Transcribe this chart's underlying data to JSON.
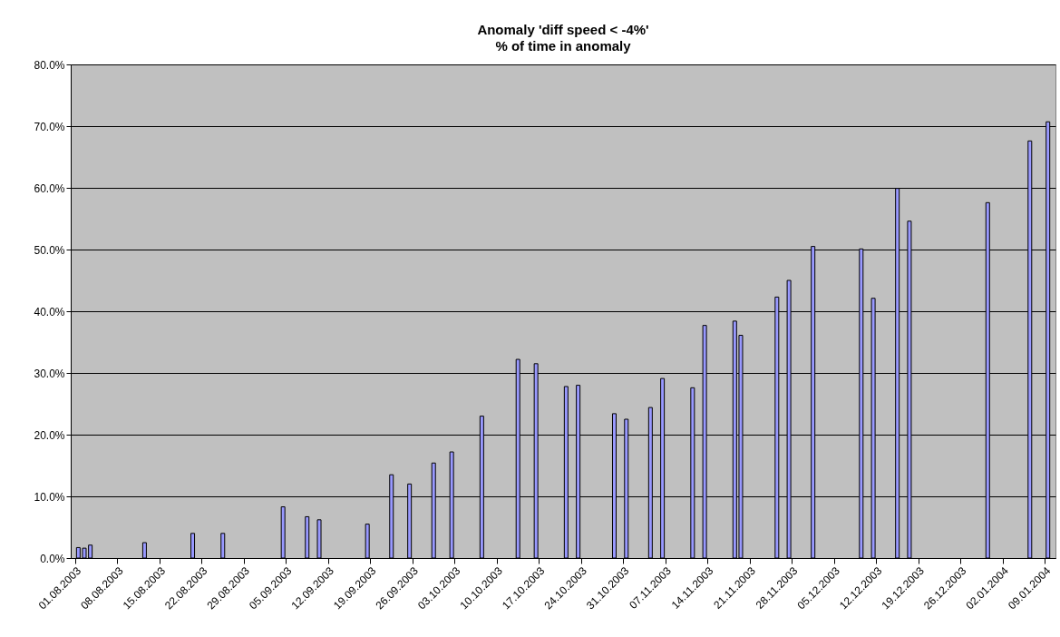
{
  "chart_data": {
    "type": "bar",
    "title": "Anomaly 'diff speed < -4%'",
    "subtitle": "% of time in anomaly",
    "x": [
      "2003-08-01",
      "2003-08-02",
      "2003-08-03",
      "2003-08-12",
      "2003-08-20",
      "2003-08-25",
      "2003-09-04",
      "2003-09-08",
      "2003-09-10",
      "2003-09-18",
      "2003-09-22",
      "2003-09-25",
      "2003-09-29",
      "2003-10-02",
      "2003-10-07",
      "2003-10-13",
      "2003-10-16",
      "2003-10-21",
      "2003-10-23",
      "2003-10-29",
      "2003-10-31",
      "2003-11-04",
      "2003-11-06",
      "2003-11-11",
      "2003-11-13",
      "2003-11-18",
      "2003-11-19",
      "2003-11-25",
      "2003-11-27",
      "2003-12-01",
      "2003-12-09",
      "2003-12-11",
      "2003-12-15",
      "2003-12-17",
      "2003-12-30",
      "2004-01-06",
      "2004-01-09"
    ],
    "values": [
      1.7,
      1.6,
      2.1,
      2.5,
      4.0,
      4.0,
      8.3,
      6.7,
      6.2,
      5.5,
      13.5,
      12.0,
      15.4,
      17.2,
      23.0,
      32.2,
      31.5,
      27.8,
      28.0,
      23.4,
      22.5,
      24.4,
      29.1,
      27.6,
      37.7,
      38.4,
      36.1,
      42.3,
      45.0,
      50.5,
      50.1,
      42.1,
      59.9,
      54.6,
      57.6,
      67.6,
      70.7
    ],
    "color": "#9999ff",
    "xlim": [
      "2003-08-01",
      "2004-01-10"
    ],
    "xticks": [
      {
        "value": "2003-08-01",
        "label": "01.08.2003"
      },
      {
        "value": "2003-08-08",
        "label": "08.08.2003"
      },
      {
        "value": "2003-08-15",
        "label": "15.08.2003"
      },
      {
        "value": "2003-08-22",
        "label": "22.08.2003"
      },
      {
        "value": "2003-08-29",
        "label": "29.08.2003"
      },
      {
        "value": "2003-09-05",
        "label": "05.09.2003"
      },
      {
        "value": "2003-09-12",
        "label": "12.09.2003"
      },
      {
        "value": "2003-09-19",
        "label": "19.09.2003"
      },
      {
        "value": "2003-09-26",
        "label": "26.09.2003"
      },
      {
        "value": "2003-10-03",
        "label": "03.10.2003"
      },
      {
        "value": "2003-10-10",
        "label": "10.10.2003"
      },
      {
        "value": "2003-10-17",
        "label": "17.10.2003"
      },
      {
        "value": "2003-10-24",
        "label": "24.10.2003"
      },
      {
        "value": "2003-10-31",
        "label": "31.10.2003"
      },
      {
        "value": "2003-11-07",
        "label": "07.11.2003"
      },
      {
        "value": "2003-11-14",
        "label": "14.11.2003"
      },
      {
        "value": "2003-11-21",
        "label": "21.11.2003"
      },
      {
        "value": "2003-11-28",
        "label": "28.11.2003"
      },
      {
        "value": "2003-12-05",
        "label": "05.12.2003"
      },
      {
        "value": "2003-12-12",
        "label": "12.12.2003"
      },
      {
        "value": "2003-12-19",
        "label": "19.12.2003"
      },
      {
        "value": "2003-12-26",
        "label": "26.12.2003"
      },
      {
        "value": "2004-01-02",
        "label": "02.01.2004"
      },
      {
        "value": "2004-01-09",
        "label": "09.01.2004"
      }
    ],
    "ylim": [
      0,
      80
    ],
    "yticks": [
      {
        "value": 0,
        "label": "0.0%"
      },
      {
        "value": 10,
        "label": "10.0%"
      },
      {
        "value": 20,
        "label": "20.0%"
      },
      {
        "value": 30,
        "label": "30.0%"
      },
      {
        "value": 40,
        "label": "40.0%"
      },
      {
        "value": 50,
        "label": "50.0%"
      },
      {
        "value": 60,
        "label": "60.0%"
      },
      {
        "value": 70,
        "label": "70.0%"
      },
      {
        "value": 80,
        "label": "80.0%"
      }
    ],
    "grid": "y"
  }
}
